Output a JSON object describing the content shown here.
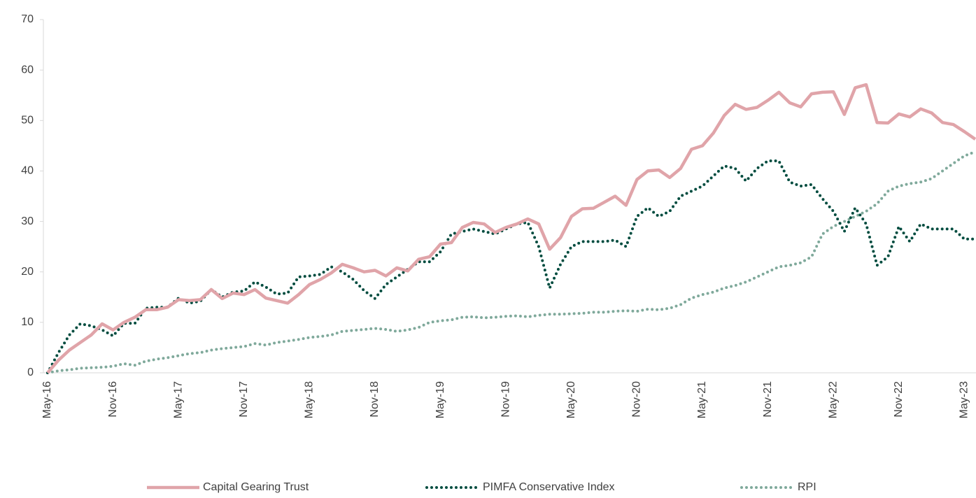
{
  "chart_data": {
    "type": "line",
    "categories": [
      "May-16",
      null,
      null,
      null,
      null,
      null,
      "Nov-16",
      null,
      null,
      null,
      null,
      null,
      "May-17",
      null,
      null,
      null,
      null,
      null,
      "Nov-17",
      null,
      null,
      null,
      null,
      null,
      "May-18",
      null,
      null,
      null,
      null,
      null,
      "Nov-18",
      null,
      null,
      null,
      null,
      null,
      "May-19",
      null,
      null,
      null,
      null,
      null,
      "Nov-19",
      null,
      null,
      null,
      null,
      null,
      "May-20",
      null,
      null,
      null,
      null,
      null,
      "Nov-20",
      null,
      null,
      null,
      null,
      null,
      "May-21",
      null,
      null,
      null,
      null,
      null,
      "Nov-21",
      null,
      null,
      null,
      null,
      null,
      "May-22",
      null,
      null,
      null,
      null,
      null,
      "Nov-22",
      null,
      null,
      null,
      null,
      null,
      "May-23",
      null
    ],
    "series": [
      {
        "name": "Capital Gearing Trust",
        "color": "#e0a4a9",
        "line_style": "solid",
        "values": [
          0,
          2.5,
          4.5,
          6,
          7.5,
          9.7,
          8.5,
          10,
          11,
          12.5,
          12.5,
          13,
          14.5,
          14.3,
          14.5,
          16.5,
          14.7,
          15.8,
          15.5,
          16.5,
          14.8,
          14.3,
          13.8,
          15.5,
          17.5,
          18.5,
          19.8,
          21.5,
          20.8,
          20,
          20.3,
          19.2,
          20.8,
          20.2,
          22.5,
          23,
          25.5,
          25.8,
          28.8,
          29.8,
          29.5,
          27.8,
          28.8,
          29.5,
          30.5,
          29.5,
          24.5,
          26.8,
          31,
          32.5,
          32.6,
          33.8,
          35,
          33.2,
          38.3,
          40,
          40.2,
          38.7,
          40.5,
          44.3,
          45,
          47.5,
          51,
          53.2,
          52.2,
          52.6,
          54,
          55.6,
          53.5,
          52.7,
          55.3,
          55.6,
          55.7,
          51.2,
          56.5,
          57.1,
          49.6,
          49.5,
          51.3,
          50.7,
          52.3,
          51.5,
          49.6,
          49.2,
          47.8,
          46.3
        ]
      },
      {
        "name": "PIMFA Conservative Index",
        "color": "#004c3f",
        "line_style": "dotted",
        "values": [
          0,
          4,
          7.5,
          9.7,
          9.3,
          8.5,
          7.3,
          9.8,
          9.8,
          12.8,
          13,
          13,
          14.8,
          13.8,
          14.2,
          16.5,
          15,
          16,
          16.2,
          18,
          17,
          15.6,
          15.8,
          19,
          19.2,
          19.5,
          21,
          20,
          18.5,
          16.3,
          14.7,
          17.5,
          19,
          20.5,
          22,
          22,
          24,
          27.5,
          28,
          28.5,
          28,
          27.5,
          28.5,
          29.5,
          29.8,
          25,
          16.8,
          21.5,
          25,
          26,
          26,
          26,
          26.3,
          25,
          31,
          32.7,
          31,
          32,
          35,
          36,
          37,
          39,
          41,
          40.5,
          38,
          40.5,
          42,
          42,
          37.8,
          37,
          37.3,
          34.5,
          32,
          28,
          32.7,
          29.5,
          21.3,
          23,
          29,
          26,
          29.5,
          28.5,
          28.5,
          28.5,
          26.5,
          26.5
        ]
      },
      {
        "name": "RPI",
        "color": "#7fa99b",
        "line_style": "dotted",
        "values": [
          0,
          0.4,
          0.6,
          0.9,
          1,
          1.1,
          1.3,
          1.8,
          1.5,
          2.3,
          2.7,
          3,
          3.4,
          3.8,
          4,
          4.5,
          4.8,
          5,
          5.2,
          5.8,
          5.5,
          6,
          6.3,
          6.6,
          7,
          7.2,
          7.5,
          8.2,
          8.4,
          8.6,
          8.8,
          8.6,
          8.2,
          8.5,
          9,
          10,
          10.3,
          10.5,
          11,
          11.1,
          10.9,
          11,
          11.2,
          11.3,
          11.1,
          11.4,
          11.6,
          11.6,
          11.7,
          11.8,
          12,
          12,
          12.2,
          12.3,
          12.2,
          12.6,
          12.5,
          12.8,
          13.5,
          14.8,
          15.5,
          16,
          16.8,
          17.3,
          18,
          19,
          20,
          21,
          21.3,
          21.8,
          23,
          27.5,
          29,
          30,
          31,
          32,
          33.5,
          36,
          37,
          37.5,
          37.8,
          38.5,
          40,
          41.5,
          43,
          43.8
        ]
      }
    ],
    "ylim": [
      0,
      70
    ],
    "yticks": [
      0,
      10,
      20,
      30,
      40,
      50,
      60,
      70
    ],
    "grid": false,
    "legend": "bottom"
  }
}
